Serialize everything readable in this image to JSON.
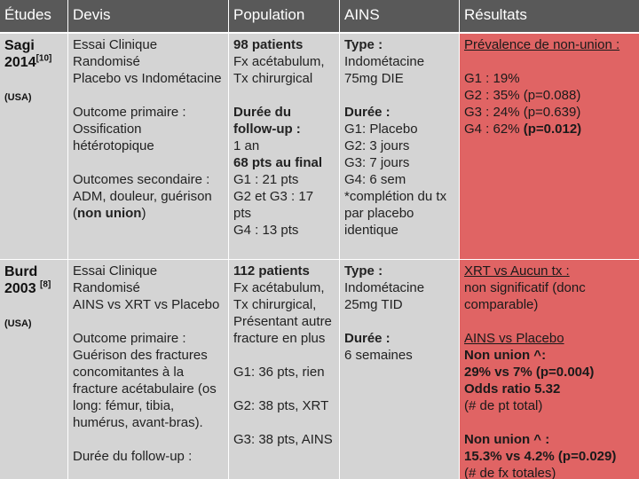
{
  "header": [
    "Études",
    "Devis",
    "Population",
    "AINS",
    "Résultats"
  ],
  "rows": [
    {
      "cells": [
        [
          [
            [
              "Sagi"
            ],
            [
              "2014",
              {
                "text": "[10]",
                "sup": true
              }
            ]
          ],
          [
            [
              {
                "text": "(USA)",
                "small": true
              }
            ]
          ]
        ],
        [
          [
            "Essai Clinique Randomisé",
            "Placebo vs Indométacine"
          ],
          [
            "Outcome primaire :",
            "Ossification hétérotopique"
          ],
          [
            "Outcomes secondaire :",
            [
              "ADM, douleur, guérison (",
              {
                "text": "non union",
                "bold": true
              },
              ")"
            ]
          ]
        ],
        [
          [
            [
              {
                "text": "98 patients",
                "bold": true
              }
            ],
            "Fx acétabulum, Tx chirurgical"
          ],
          [
            [
              {
                "text": "Durée du follow-up :",
                "bold": true
              }
            ],
            "1 an",
            [
              {
                "text": "68 pts au final",
                "bold": true
              }
            ],
            "G1 : 21 pts",
            "G2 et G3 : 17 pts",
            "G4 : 13 pts"
          ]
        ],
        [
          [
            [
              {
                "text": "Type :",
                "bold": true
              }
            ],
            "Indométacine 75mg DIE"
          ],
          [
            [
              {
                "text": "Durée :",
                "bold": true
              }
            ],
            "G1: Placebo",
            "G2: 3 jours",
            "G3: 7 jours",
            "G4: 6 sem",
            "*complétion du tx par placebo identique"
          ]
        ],
        [
          [
            [
              {
                "text": "Prévalence de non-union :",
                "underline": true
              }
            ]
          ],
          [
            "G1 : 19%",
            "G2 : 35% (p=0.088)",
            "G3 : 24% (p=0.639)",
            [
              "G4 : 62% ",
              {
                "text": "(p=0.012)",
                "bold": true
              }
            ]
          ]
        ]
      ]
    },
    {
      "cells": [
        [
          [
            [
              "Burd"
            ],
            [
              "2003 ",
              {
                "text": "[8]",
                "sup": true
              }
            ]
          ],
          [
            [
              {
                "text": "(USA)",
                "small": true
              }
            ]
          ]
        ],
        [
          [
            "Essai Clinique Randomisé",
            "AINS vs XRT vs Placebo"
          ],
          [
            "Outcome primaire :",
            "Guérison des fractures concomitantes à la fracture acétabulaire (os long: fémur, tibia, humérus, avant-bras)."
          ],
          [
            "Durée du follow-up :"
          ]
        ],
        [
          [
            [
              {
                "text": "112 patients",
                "bold": true
              }
            ],
            "Fx acétabulum, Tx chirurgical, Présentant autre fracture en plus"
          ],
          [
            "G1: 36 pts, rien"
          ],
          [
            "G2: 38 pts, XRT"
          ],
          [
            "G3: 38 pts, AINS"
          ]
        ],
        [
          [
            [
              {
                "text": "Type :",
                "bold": true
              }
            ],
            "Indométacine 25mg TID"
          ],
          [
            [
              {
                "text": "Durée :",
                "bold": true
              }
            ],
            "6 semaines"
          ]
        ],
        [
          [
            [
              {
                "text": "XRT vs Aucun tx :",
                "underline": true
              }
            ],
            "non significatif (donc comparable)"
          ],
          [
            [
              {
                "text": "AINS vs Placebo",
                "underline": true
              }
            ],
            [
              {
                "text": "Non union ^:",
                "bold": true
              }
            ],
            [
              {
                "text": "29% vs 7% (p=0.004)",
                "bold": true
              }
            ],
            [
              {
                "text": "Odds ratio 5.32",
                "bold": true
              }
            ],
            "(# de pt total)"
          ],
          [
            [
              {
                "text": "Non union ^ :",
                "bold": true
              }
            ],
            [
              {
                "text": "15.3% vs 4.2% (p=0.029)",
                "bold": true
              }
            ],
            "(# de fx totales)"
          ]
        ]
      ]
    }
  ]
}
